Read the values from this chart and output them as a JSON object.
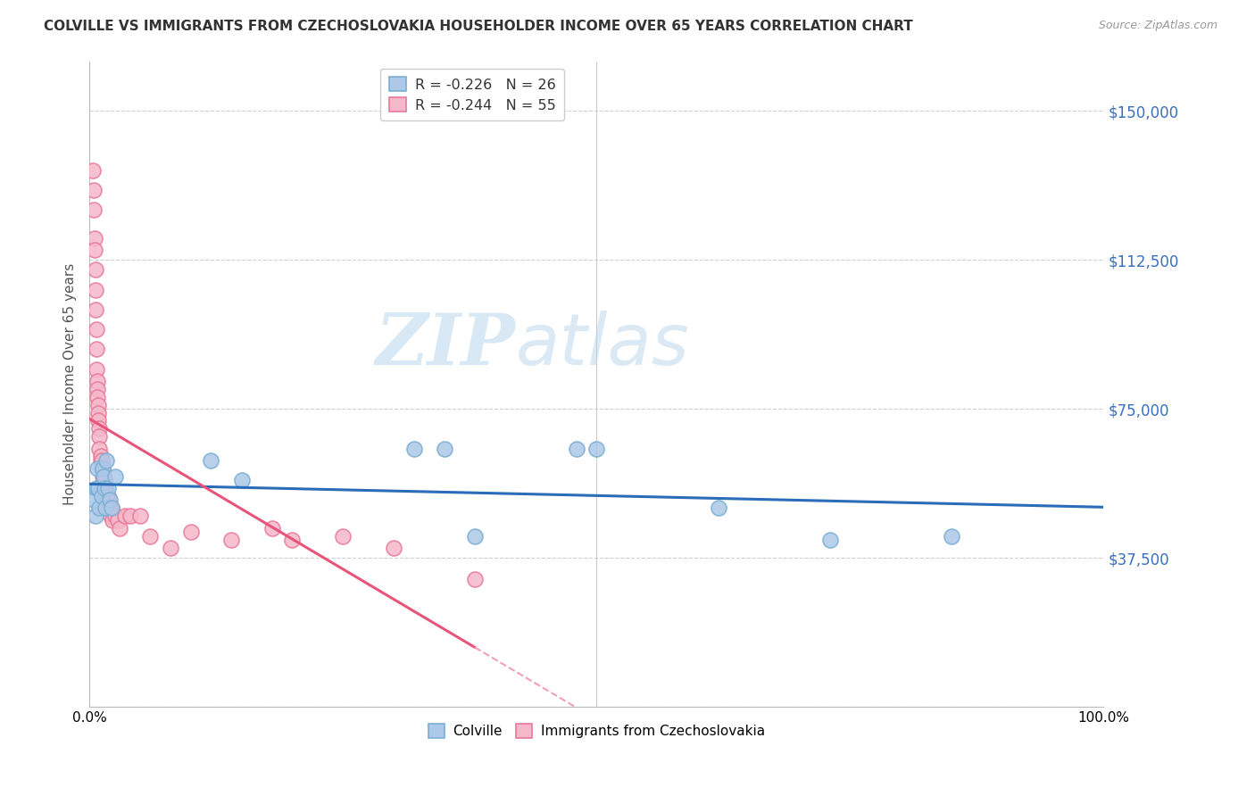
{
  "title": "COLVILLE VS IMMIGRANTS FROM CZECHOSLOVAKIA HOUSEHOLDER INCOME OVER 65 YEARS CORRELATION CHART",
  "source": "Source: ZipAtlas.com",
  "ylabel": "Householder Income Over 65 years",
  "yticks": [
    0,
    37500,
    75000,
    112500,
    150000
  ],
  "ytick_labels": [
    "",
    "$37,500",
    "$75,000",
    "$112,500",
    "$150,000"
  ],
  "xlim": [
    0,
    1.0
  ],
  "ylim": [
    0,
    162500
  ],
  "watermark_zip": "ZIP",
  "watermark_atlas": "atlas",
  "legend_r1": "R = -0.226",
  "legend_n1": "N = 26",
  "legend_r2": "R = -0.244",
  "legend_n2": "N = 55",
  "colville_color": "#adc8e8",
  "colville_edge": "#7aafd4",
  "czech_color": "#f5b8cb",
  "czech_edge": "#e87a9a",
  "trendline_colville": "#2b6cb8",
  "trendline_czech_solid": "#e8547a",
  "trendline_czech_dashed": "#f0a0b8",
  "label_color": "#3a6fbf",
  "colville_x": [
    0.004,
    0.006,
    0.007,
    0.008,
    0.009,
    0.01,
    0.012,
    0.013,
    0.014,
    0.015,
    0.016,
    0.017,
    0.018,
    0.02,
    0.022,
    0.025,
    0.12,
    0.15,
    0.32,
    0.35,
    0.38,
    0.48,
    0.5,
    0.62,
    0.73,
    0.85
  ],
  "colville_y": [
    52000,
    48000,
    55000,
    60000,
    55000,
    50000,
    53000,
    60000,
    58000,
    55000,
    50000,
    62000,
    55000,
    52000,
    50000,
    58000,
    62000,
    57000,
    65000,
    65000,
    43000,
    65000,
    65000,
    50000,
    42000,
    43000
  ],
  "czech_x": [
    0.003,
    0.004,
    0.004,
    0.005,
    0.005,
    0.006,
    0.006,
    0.006,
    0.007,
    0.007,
    0.007,
    0.008,
    0.008,
    0.008,
    0.009,
    0.009,
    0.009,
    0.01,
    0.01,
    0.01,
    0.011,
    0.011,
    0.012,
    0.012,
    0.013,
    0.013,
    0.014,
    0.014,
    0.015,
    0.015,
    0.016,
    0.016,
    0.017,
    0.018,
    0.018,
    0.019,
    0.02,
    0.021,
    0.022,
    0.023,
    0.025,
    0.028,
    0.03,
    0.035,
    0.04,
    0.05,
    0.06,
    0.08,
    0.1,
    0.14,
    0.18,
    0.2,
    0.25,
    0.3,
    0.38
  ],
  "czech_y": [
    135000,
    130000,
    125000,
    118000,
    115000,
    110000,
    105000,
    100000,
    95000,
    90000,
    85000,
    82000,
    80000,
    78000,
    76000,
    74000,
    72000,
    70000,
    68000,
    65000,
    62000,
    63000,
    60000,
    62000,
    58000,
    60000,
    57000,
    58000,
    55000,
    57000,
    53000,
    55000,
    52000,
    53000,
    50000,
    52000,
    50000,
    48000,
    50000,
    47000,
    48000,
    47000,
    45000,
    48000,
    48000,
    48000,
    43000,
    40000,
    44000,
    42000,
    45000,
    42000,
    43000,
    40000,
    32000
  ],
  "trendline_czech_x_end": 0.38,
  "trendline_czech_dashed_end": 0.55
}
